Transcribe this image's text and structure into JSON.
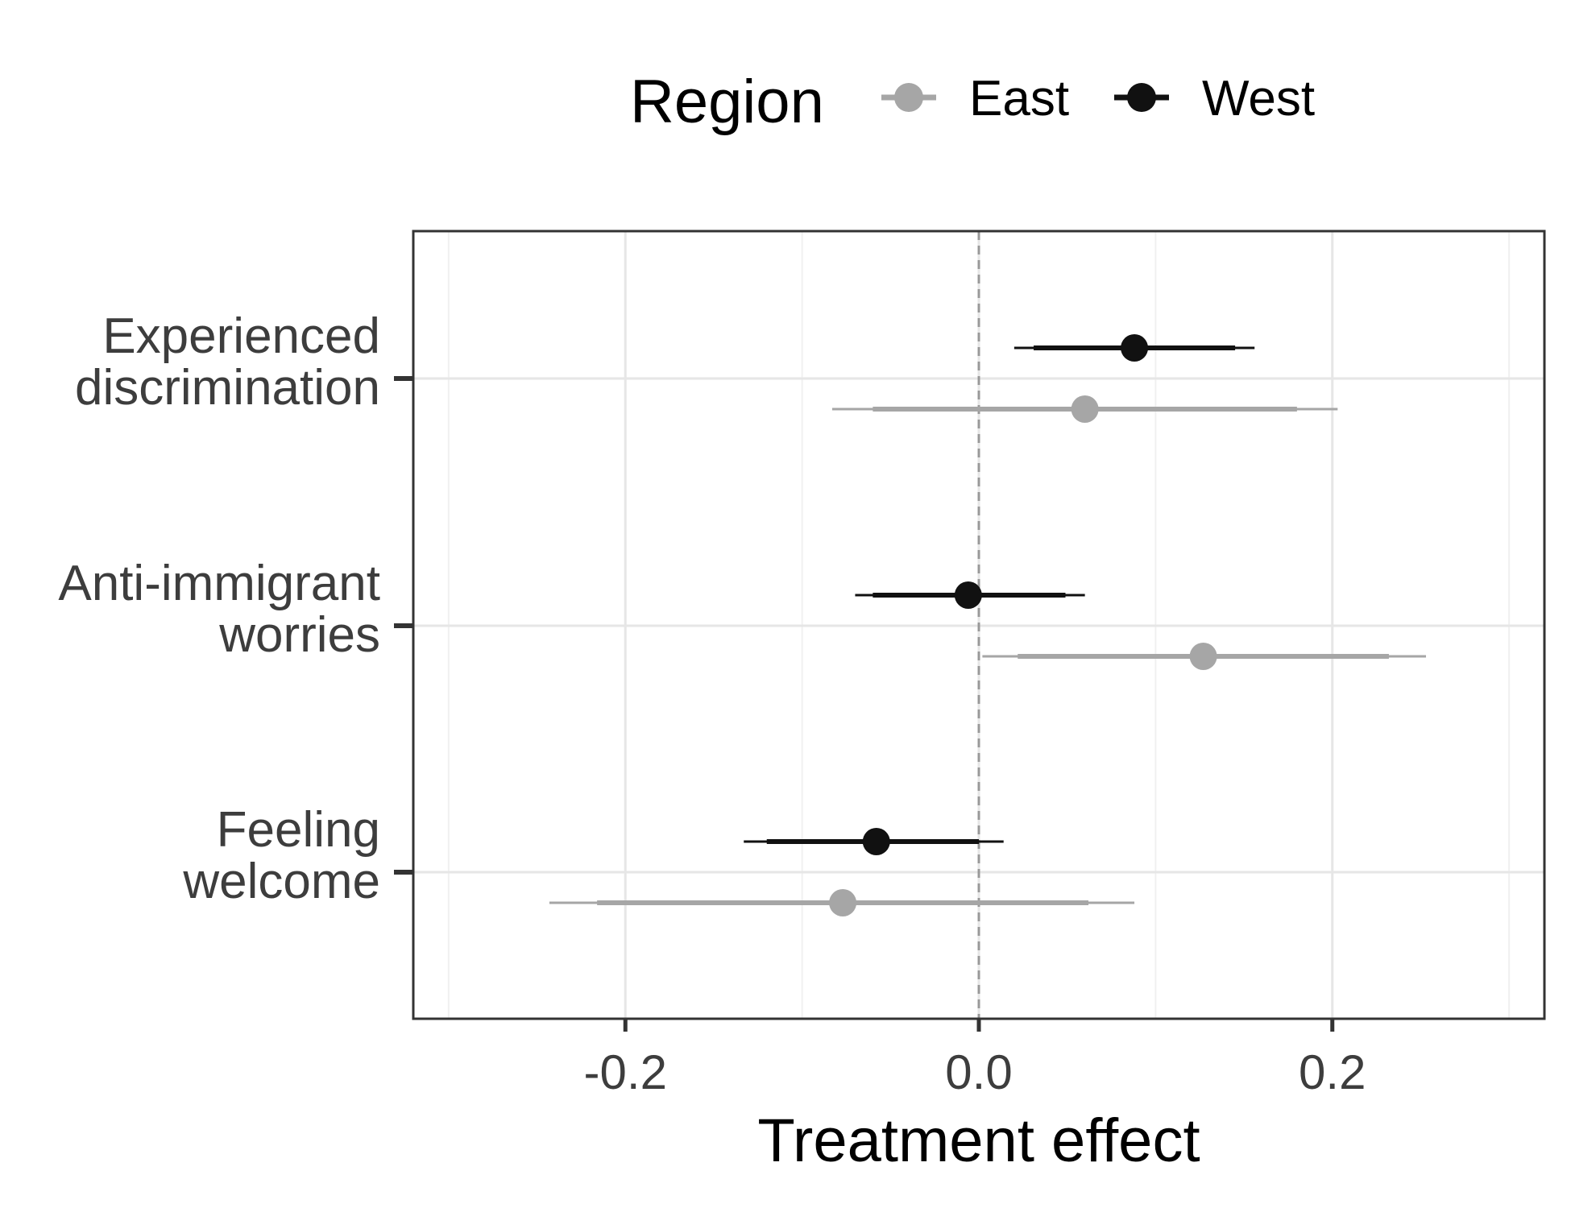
{
  "chart_data": {
    "type": "forest",
    "title": "",
    "xlabel": "Treatment effect",
    "ylabel": "",
    "xlim": [
      -0.32,
      0.32
    ],
    "x_ticks": [
      -0.2,
      0.0,
      0.2
    ],
    "x_tick_labels": [
      "-0.2",
      "0.0",
      "0.2"
    ],
    "reference_line": 0.0,
    "grid": true,
    "legend": {
      "title": "Region",
      "placement": "top",
      "entries": [
        "East",
        "West"
      ]
    },
    "categories": [
      {
        "label_lines": [
          "Experienced",
          "discrimination"
        ]
      },
      {
        "label_lines": [
          "Anti-immigrant",
          "worries"
        ]
      },
      {
        "label_lines": [
          "Feeling",
          "welcome"
        ]
      }
    ],
    "series": [
      {
        "name": "East",
        "color": "#a6a6a6",
        "estimates": [
          0.06,
          0.127,
          -0.077
        ],
        "ci_inner": [
          [
            -0.06,
            0.18
          ],
          [
            0.022,
            0.232
          ],
          [
            -0.216,
            0.062
          ]
        ],
        "ci_outer": [
          [
            -0.083,
            0.203
          ],
          [
            0.002,
            0.253
          ],
          [
            -0.243,
            0.088
          ]
        ]
      },
      {
        "name": "West",
        "color": "#111111",
        "estimates": [
          0.088,
          -0.006,
          -0.058
        ],
        "ci_inner": [
          [
            0.031,
            0.145
          ],
          [
            -0.06,
            0.049
          ],
          [
            -0.12,
            0.0
          ]
        ],
        "ci_outer": [
          [
            0.02,
            0.156
          ],
          [
            -0.07,
            0.06
          ],
          [
            -0.133,
            0.014
          ]
        ]
      }
    ]
  }
}
